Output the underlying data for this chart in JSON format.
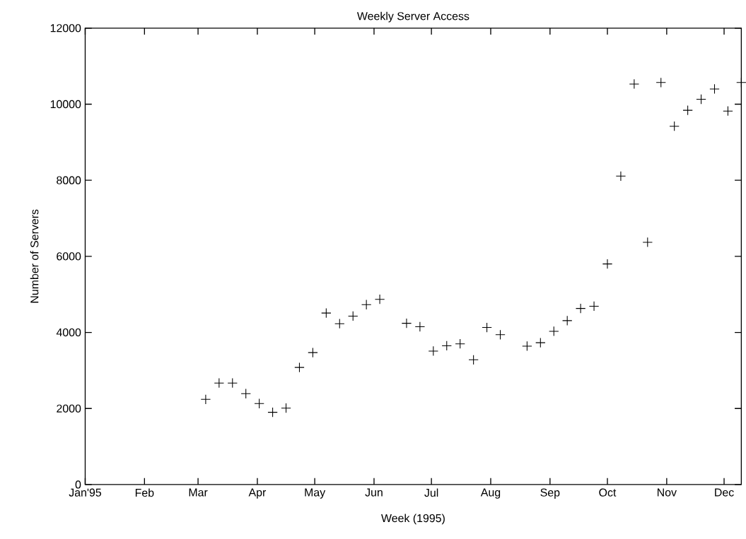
{
  "chart_data": {
    "type": "scatter",
    "title": "Weekly Server Access",
    "xlabel": "Week (1995)",
    "ylabel": "Number of Servers",
    "x": [
      "1995-03-05",
      "1995-03-12",
      "1995-03-19",
      "1995-03-26",
      "1995-04-02",
      "1995-04-09",
      "1995-04-16",
      "1995-04-23",
      "1995-04-30",
      "1995-05-07",
      "1995-05-14",
      "1995-05-21",
      "1995-05-28",
      "1995-06-04",
      "1995-06-18",
      "1995-06-25",
      "1995-07-02",
      "1995-07-09",
      "1995-07-16",
      "1995-07-23",
      "1995-07-30",
      "1995-08-06",
      "1995-08-20",
      "1995-08-27",
      "1995-09-03",
      "1995-09-10",
      "1995-09-17",
      "1995-09-24",
      "1995-10-01",
      "1995-10-08",
      "1995-10-15",
      "1995-10-22",
      "1995-10-29",
      "1995-11-05",
      "1995-11-12",
      "1995-11-19",
      "1995-11-26",
      "1995-12-03",
      "1995-12-10"
    ],
    "values": [
      2240,
      2670,
      2670,
      2390,
      2130,
      1900,
      2010,
      3080,
      3470,
      4510,
      4230,
      4430,
      4730,
      4870,
      4240,
      4150,
      3510,
      3650,
      3700,
      3280,
      4130,
      3940,
      3640,
      3730,
      4030,
      4310,
      4630,
      4690,
      5800,
      8110,
      10530,
      6370,
      10570,
      9420,
      9840,
      10130,
      10400,
      9820,
      10570
    ],
    "color": "#000000",
    "marker": "cross",
    "xlim": [
      "1995-01-01",
      "1995-12-10"
    ],
    "ylim": [
      0,
      12000
    ],
    "xticks": [
      {
        "value": "1995-01-01",
        "label": "Jan'95"
      },
      {
        "value": "1995-02-01",
        "label": "Feb"
      },
      {
        "value": "1995-03-01",
        "label": "Mar"
      },
      {
        "value": "1995-04-01",
        "label": "Apr"
      },
      {
        "value": "1995-05-01",
        "label": "May"
      },
      {
        "value": "1995-06-01",
        "label": "Jun"
      },
      {
        "value": "1995-07-01",
        "label": "Jul"
      },
      {
        "value": "1995-08-01",
        "label": "Aug"
      },
      {
        "value": "1995-09-01",
        "label": "Sep"
      },
      {
        "value": "1995-10-01",
        "label": "Oct"
      },
      {
        "value": "1995-11-01",
        "label": "Nov"
      },
      {
        "value": "1995-12-01",
        "label": "Dec"
      }
    ],
    "yticks": [
      0,
      2000,
      4000,
      6000,
      8000,
      10000,
      12000
    ]
  }
}
